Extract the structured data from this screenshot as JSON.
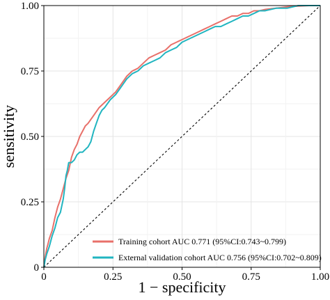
{
  "chart_data": {
    "type": "line",
    "title": "",
    "xlabel": "1 − specificity",
    "ylabel": "sensitivity",
    "xlim": [
      0,
      1
    ],
    "ylim": [
      0,
      1
    ],
    "x_ticks": [
      "0",
      "0.25",
      "0.50",
      "0.75",
      "1.00"
    ],
    "y_ticks": [
      "0",
      "0.25",
      "0.50",
      "0.75",
      "1.00"
    ],
    "grid": true,
    "legend_position": "bottom-right",
    "reference_line": {
      "style": "dashed",
      "from": [
        0,
        0
      ],
      "to": [
        1,
        1
      ]
    },
    "series": [
      {
        "name": "Training cohort AUC 0.771 (95%CI:0.743~0.799)",
        "color": "#e8706a",
        "x": [
          0,
          0.005,
          0.01,
          0.015,
          0.02,
          0.03,
          0.04,
          0.05,
          0.06,
          0.07,
          0.08,
          0.09,
          0.1,
          0.11,
          0.12,
          0.13,
          0.14,
          0.15,
          0.16,
          0.18,
          0.2,
          0.22,
          0.24,
          0.26,
          0.28,
          0.3,
          0.32,
          0.34,
          0.36,
          0.38,
          0.4,
          0.42,
          0.44,
          0.46,
          0.48,
          0.5,
          0.52,
          0.54,
          0.56,
          0.58,
          0.6,
          0.62,
          0.64,
          0.66,
          0.68,
          0.7,
          0.72,
          0.74,
          0.76,
          0.78,
          0.8,
          0.84,
          0.88,
          0.92,
          0.96,
          1.0
        ],
        "y": [
          0,
          0.04,
          0.07,
          0.09,
          0.11,
          0.14,
          0.19,
          0.23,
          0.26,
          0.3,
          0.34,
          0.37,
          0.42,
          0.45,
          0.47,
          0.5,
          0.52,
          0.54,
          0.55,
          0.58,
          0.61,
          0.63,
          0.65,
          0.67,
          0.7,
          0.73,
          0.75,
          0.76,
          0.78,
          0.8,
          0.81,
          0.82,
          0.83,
          0.85,
          0.86,
          0.87,
          0.88,
          0.89,
          0.9,
          0.91,
          0.92,
          0.93,
          0.94,
          0.95,
          0.96,
          0.96,
          0.97,
          0.97,
          0.98,
          0.98,
          0.985,
          0.99,
          0.995,
          0.998,
          1.0,
          1.0
        ]
      },
      {
        "name": "External validation cohort AUC 0.756 (95%CI:0.702~0.809)",
        "color": "#21b5c0",
        "x": [
          0,
          0.005,
          0.01,
          0.02,
          0.03,
          0.04,
          0.05,
          0.06,
          0.07,
          0.075,
          0.08,
          0.085,
          0.09,
          0.1,
          0.11,
          0.12,
          0.13,
          0.14,
          0.15,
          0.16,
          0.17,
          0.18,
          0.19,
          0.2,
          0.21,
          0.22,
          0.24,
          0.26,
          0.28,
          0.3,
          0.32,
          0.34,
          0.36,
          0.38,
          0.4,
          0.42,
          0.44,
          0.46,
          0.48,
          0.5,
          0.52,
          0.54,
          0.56,
          0.58,
          0.6,
          0.62,
          0.64,
          0.66,
          0.68,
          0.7,
          0.72,
          0.74,
          0.76,
          0.78,
          0.8,
          0.84,
          0.88,
          0.92,
          0.96,
          1.0
        ],
        "y": [
          0,
          0.03,
          0.05,
          0.08,
          0.12,
          0.15,
          0.19,
          0.21,
          0.26,
          0.3,
          0.35,
          0.37,
          0.4,
          0.4,
          0.41,
          0.43,
          0.44,
          0.44,
          0.45,
          0.46,
          0.48,
          0.52,
          0.55,
          0.58,
          0.6,
          0.61,
          0.64,
          0.66,
          0.69,
          0.72,
          0.74,
          0.75,
          0.77,
          0.78,
          0.79,
          0.8,
          0.82,
          0.83,
          0.84,
          0.86,
          0.87,
          0.88,
          0.89,
          0.9,
          0.91,
          0.92,
          0.92,
          0.93,
          0.94,
          0.95,
          0.96,
          0.96,
          0.97,
          0.98,
          0.98,
          0.99,
          0.99,
          1.0,
          1.0,
          1.0
        ]
      }
    ]
  }
}
